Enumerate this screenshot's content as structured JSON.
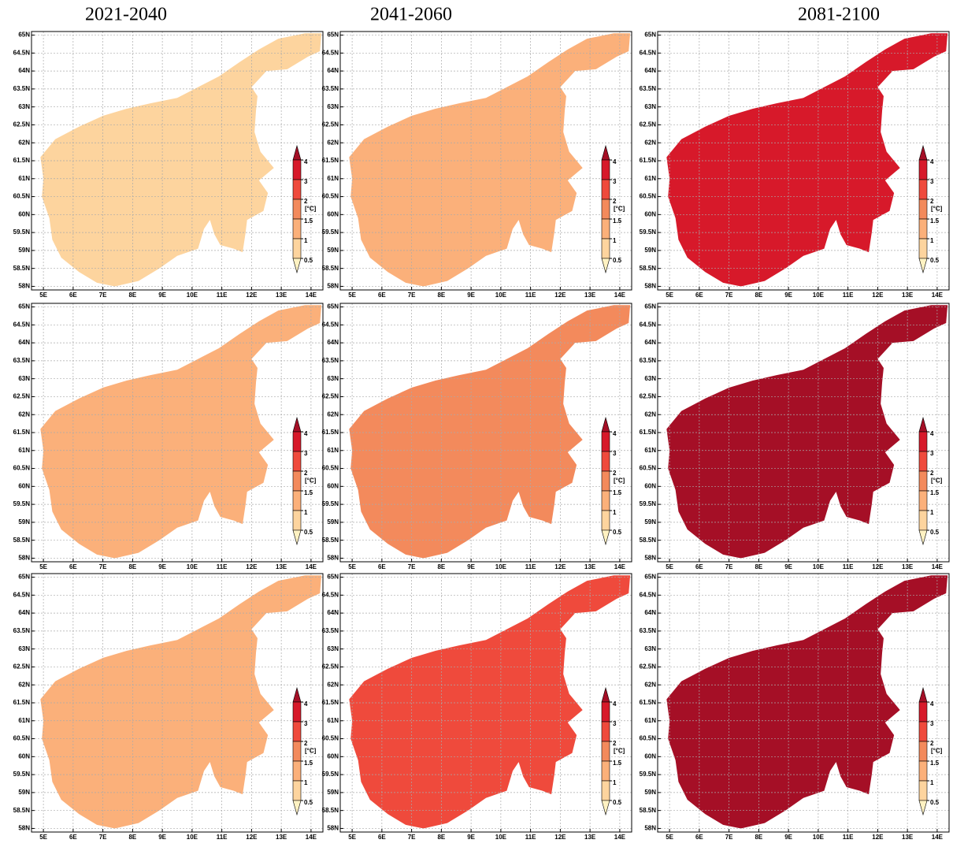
{
  "titles": [
    "2021-2040",
    "2041-2060",
    "2081-2100"
  ],
  "map": {
    "xlim": [
      4.6,
      14.4
    ],
    "ylim": [
      57.9,
      65.1
    ],
    "xticks": [
      {
        "value": 5,
        "label": "5E"
      },
      {
        "value": 6,
        "label": "6E"
      },
      {
        "value": 7,
        "label": "7E"
      },
      {
        "value": 8,
        "label": "8E"
      },
      {
        "value": 9,
        "label": "9E"
      },
      {
        "value": 10,
        "label": "10E"
      },
      {
        "value": 11,
        "label": "11E"
      },
      {
        "value": 12,
        "label": "12E"
      },
      {
        "value": 13,
        "label": "13E"
      },
      {
        "value": 14,
        "label": "14E"
      }
    ],
    "yticks": [
      {
        "value": 58,
        "label": "58N"
      },
      {
        "value": 58.5,
        "label": "58.5N"
      },
      {
        "value": 59,
        "label": "59N"
      },
      {
        "value": 59.5,
        "label": "59.5N"
      },
      {
        "value": 60,
        "label": "60N"
      },
      {
        "value": 60.5,
        "label": "60.5N"
      },
      {
        "value": 61,
        "label": "61N"
      },
      {
        "value": 61.5,
        "label": "61.5N"
      },
      {
        "value": 62,
        "label": "62N"
      },
      {
        "value": 62.5,
        "label": "62.5N"
      },
      {
        "value": 63,
        "label": "63N"
      },
      {
        "value": 63.5,
        "label": "63.5N"
      },
      {
        "value": 64,
        "label": "64N"
      },
      {
        "value": 64.5,
        "label": "64.5N"
      },
      {
        "value": 65,
        "label": "65N"
      }
    ],
    "grid": true
  },
  "colorbar": {
    "unit": "[°C]",
    "ticks": [
      0.5,
      1,
      1.5,
      2,
      3,
      4
    ],
    "colors": [
      "#fff2c2",
      "#fdd49e",
      "#fbb07a",
      "#f38a5c",
      "#ef4a3c",
      "#d7192a",
      "#a50f26"
    ]
  },
  "panels": [
    {
      "color": "#fdd49e"
    },
    {
      "color": "#fbb07a"
    },
    {
      "color": "#d7192a"
    },
    {
      "color": "#fbb07a"
    },
    {
      "color": "#f38a5c"
    },
    {
      "color": "#a50f26"
    },
    {
      "color": "#fbb07a"
    },
    {
      "color": "#ef4a3c"
    },
    {
      "color": "#a50f26"
    }
  ]
}
